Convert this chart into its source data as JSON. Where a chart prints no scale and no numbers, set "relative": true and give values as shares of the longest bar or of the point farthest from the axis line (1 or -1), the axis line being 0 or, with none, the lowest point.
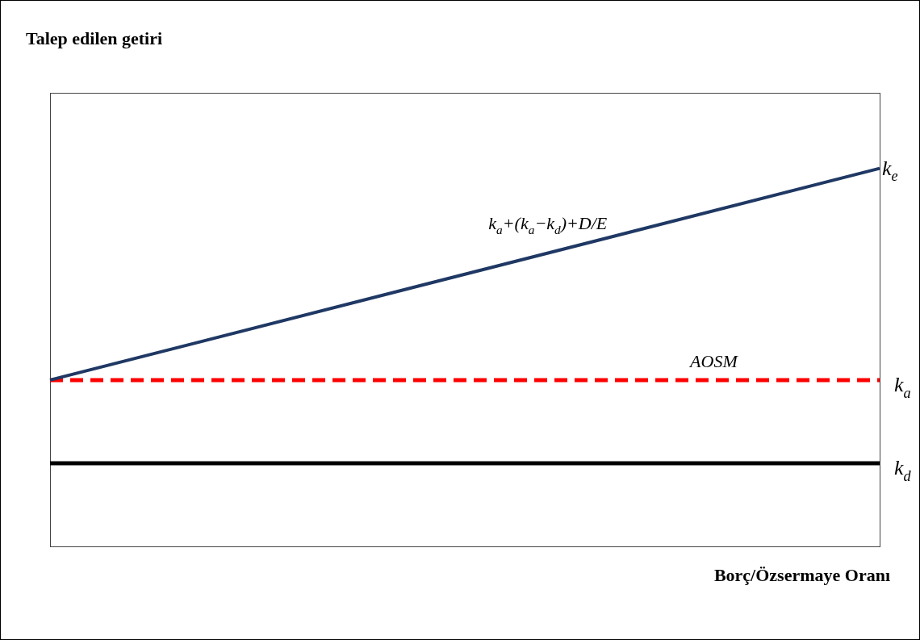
{
  "chart_data": {
    "type": "line",
    "relative": true,
    "title": "Talep edilen getiri",
    "xlabel": "Borç/Özsermaye Oranı",
    "categories": [
      null,
      null
    ],
    "series": [
      {
        "name": "k$_{e}$",
        "color": "#1f3864",
        "values": [
          0.44,
          1
        ],
        "line_style": "solid"
      },
      {
        "name": "k$_{a}$",
        "color": "#ff0000",
        "values": [
          0.44,
          0.44
        ],
        "line_style": "dashed"
      },
      {
        "name": "k$_{d}$",
        "color": "#000000",
        "values": [
          0.22,
          0.22
        ],
        "line_style": "solid"
      }
    ],
    "annotations": [
      "k$_{a}$+(k$_{a}$−k$_{d}$)+D/E",
      "AOSM"
    ],
    "legend": false,
    "grid": false,
    "marker": "none"
  }
}
